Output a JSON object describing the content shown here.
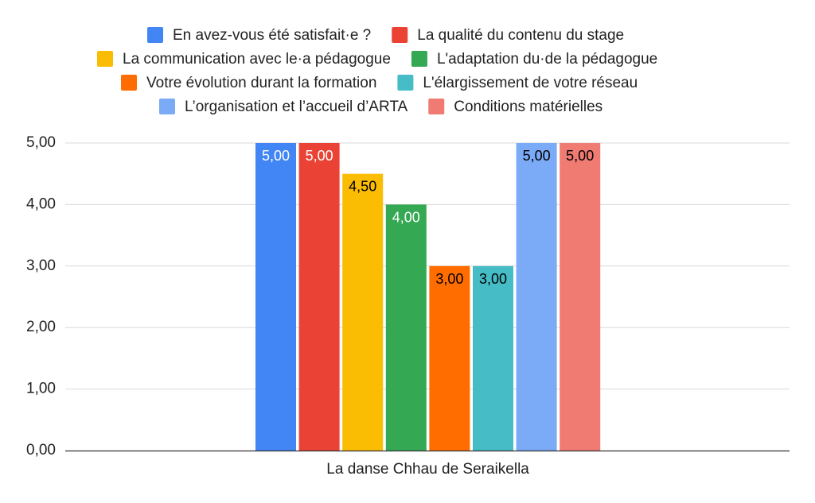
{
  "chart_data": {
    "type": "bar",
    "categories": [
      "La danse Chhau de Seraikella"
    ],
    "series": [
      {
        "name": "En avez-vous été satisfait·e ?",
        "values": [
          5.0
        ],
        "color": "#4285F4",
        "label_color": "#ffffff"
      },
      {
        "name": "La qualité du contenu du stage",
        "values": [
          5.0
        ],
        "color": "#EA4335",
        "label_color": "#ffffff"
      },
      {
        "name": "La communication avec le·a pédagogue",
        "values": [
          4.5
        ],
        "color": "#FBBC04",
        "label_color": "#000000"
      },
      {
        "name": "L'adaptation du·de la pédagogue",
        "values": [
          4.0
        ],
        "color": "#34A853",
        "label_color": "#ffffff"
      },
      {
        "name": "Votre évolution durant la formation",
        "values": [
          3.0
        ],
        "color": "#FF6D01",
        "label_color": "#000000"
      },
      {
        "name": "L'élargissement de votre réseau",
        "values": [
          3.0
        ],
        "color": "#46BDC6",
        "label_color": "#000000"
      },
      {
        "name": "L’organisation et l’accueil d’ARTA",
        "values": [
          5.0
        ],
        "color": "#7BAAF7",
        "label_color": "#000000"
      },
      {
        "name": "Conditions matérielles",
        "values": [
          5.0
        ],
        "color": "#F07B72",
        "label_color": "#000000"
      }
    ],
    "value_labels": [
      "5,00",
      "5,00",
      "4,50",
      "4,00",
      "3,00",
      "3,00",
      "5,00",
      "5,00"
    ],
    "yticks": [
      "0,00",
      "1,00",
      "2,00",
      "3,00",
      "4,00",
      "5,00"
    ],
    "ylim": [
      0,
      5
    ],
    "grid": true,
    "legend_position": "top"
  }
}
